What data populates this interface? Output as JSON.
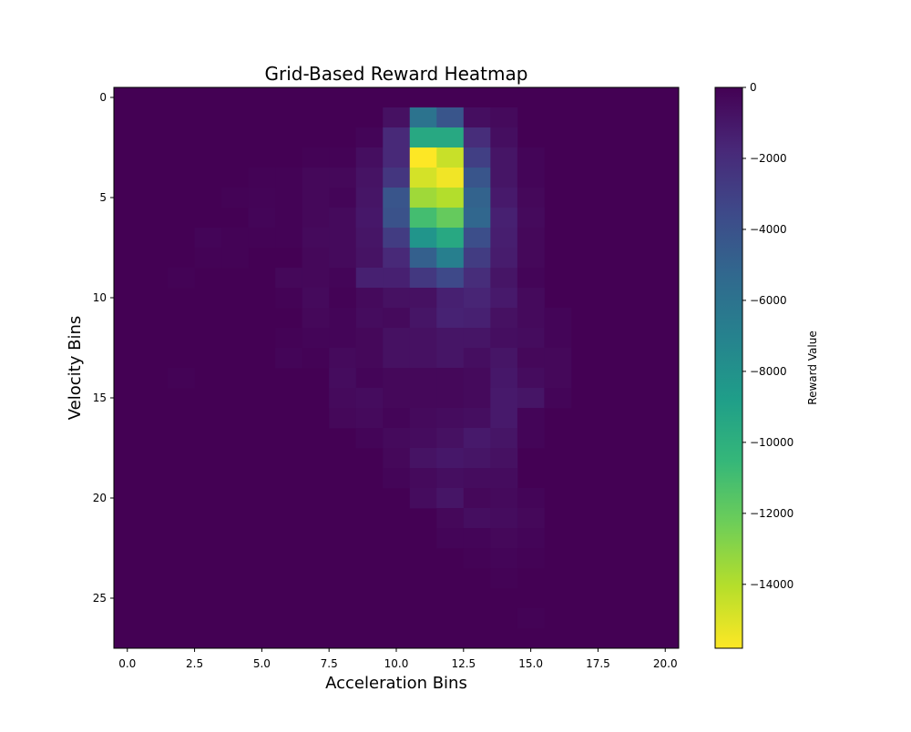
{
  "chart_data": {
    "type": "heatmap",
    "title": "Grid-Based Reward Heatmap",
    "xlabel": "Acceleration Bins",
    "ylabel": "Velocity Bins",
    "colorbar_label": "Reward Value",
    "colormap": "viridis_r",
    "color_range": [
      -15800,
      0
    ],
    "n_rows": 28,
    "n_cols": 21,
    "xlim": [
      -0.5,
      20.5
    ],
    "ylim": [
      27.5,
      -0.5
    ],
    "x_ticks": [
      0.0,
      2.5,
      5.0,
      7.5,
      10.0,
      12.5,
      15.0,
      17.5,
      20.0
    ],
    "x_tick_labels": [
      "0.0",
      "2.5",
      "5.0",
      "7.5",
      "10.0",
      "12.5",
      "15.0",
      "17.5",
      "20.0"
    ],
    "y_ticks": [
      0,
      5,
      10,
      15,
      20,
      25
    ],
    "y_tick_labels": [
      "0",
      "5",
      "10",
      "15",
      "20",
      "25"
    ],
    "colorbar_ticks": [
      0,
      -2000,
      -4000,
      -6000,
      -8000,
      -10000,
      -12000,
      -14000
    ],
    "colorbar_tick_labels": [
      "0",
      "−2000",
      "−4000",
      "−6000",
      "−8000",
      "−10000",
      "−12000",
      "−14000"
    ],
    "cells": [
      [
        1,
        10,
        -700
      ],
      [
        1,
        11,
        -6000
      ],
      [
        1,
        12,
        -4200
      ],
      [
        1,
        13,
        -600
      ],
      [
        1,
        14,
        -400
      ],
      [
        2,
        9,
        -200
      ],
      [
        2,
        10,
        -1800
      ],
      [
        2,
        11,
        -9500
      ],
      [
        2,
        12,
        -9500
      ],
      [
        2,
        13,
        -2000
      ],
      [
        2,
        14,
        -600
      ],
      [
        3,
        7,
        -100
      ],
      [
        3,
        8,
        -100
      ],
      [
        3,
        9,
        -600
      ],
      [
        3,
        10,
        -1800
      ],
      [
        3,
        11,
        -15800
      ],
      [
        3,
        12,
        -14500
      ],
      [
        3,
        13,
        -3000
      ],
      [
        3,
        14,
        -900
      ],
      [
        3,
        15,
        -200
      ],
      [
        4,
        5,
        -100
      ],
      [
        4,
        6,
        -100
      ],
      [
        4,
        7,
        -300
      ],
      [
        4,
        8,
        -300
      ],
      [
        4,
        9,
        -800
      ],
      [
        4,
        10,
        -2500
      ],
      [
        4,
        11,
        -14800
      ],
      [
        4,
        12,
        -15500
      ],
      [
        4,
        13,
        -4200
      ],
      [
        4,
        14,
        -900
      ],
      [
        4,
        15,
        -200
      ],
      [
        5,
        4,
        -100
      ],
      [
        5,
        5,
        -150
      ],
      [
        5,
        6,
        -100
      ],
      [
        5,
        7,
        -300
      ],
      [
        5,
        8,
        -200
      ],
      [
        5,
        9,
        -900
      ],
      [
        5,
        10,
        -4200
      ],
      [
        5,
        11,
        -13500
      ],
      [
        5,
        12,
        -14000
      ],
      [
        5,
        13,
        -5000
      ],
      [
        5,
        14,
        -1100
      ],
      [
        5,
        15,
        -300
      ],
      [
        6,
        5,
        -200
      ],
      [
        6,
        6,
        -100
      ],
      [
        6,
        7,
        -300
      ],
      [
        6,
        8,
        -400
      ],
      [
        6,
        9,
        -1000
      ],
      [
        6,
        10,
        -4000
      ],
      [
        6,
        11,
        -11000
      ],
      [
        6,
        12,
        -12000
      ],
      [
        6,
        13,
        -5200
      ],
      [
        6,
        14,
        -1400
      ],
      [
        6,
        15,
        -400
      ],
      [
        7,
        3,
        -200
      ],
      [
        7,
        4,
        -100
      ],
      [
        7,
        5,
        -100
      ],
      [
        7,
        6,
        -100
      ],
      [
        7,
        7,
        -400
      ],
      [
        7,
        8,
        -400
      ],
      [
        7,
        9,
        -900
      ],
      [
        7,
        10,
        -2800
      ],
      [
        7,
        11,
        -8200
      ],
      [
        7,
        12,
        -9500
      ],
      [
        7,
        13,
        -3800
      ],
      [
        7,
        14,
        -1300
      ],
      [
        7,
        15,
        -300
      ],
      [
        8,
        3,
        -100
      ],
      [
        8,
        4,
        -100
      ],
      [
        8,
        7,
        -300
      ],
      [
        8,
        8,
        -400
      ],
      [
        8,
        9,
        -800
      ],
      [
        8,
        10,
        -1800
      ],
      [
        8,
        11,
        -4800
      ],
      [
        8,
        12,
        -6800
      ],
      [
        8,
        13,
        -2800
      ],
      [
        8,
        14,
        -1200
      ],
      [
        8,
        15,
        -300
      ],
      [
        9,
        2,
        -100
      ],
      [
        9,
        6,
        -300
      ],
      [
        9,
        7,
        -300
      ],
      [
        9,
        8,
        -200
      ],
      [
        9,
        9,
        -1400
      ],
      [
        9,
        10,
        -1400
      ],
      [
        9,
        11,
        -2600
      ],
      [
        9,
        12,
        -3500
      ],
      [
        9,
        13,
        -2000
      ],
      [
        9,
        14,
        -900
      ],
      [
        9,
        15,
        -200
      ],
      [
        10,
        6,
        -100
      ],
      [
        10,
        7,
        -400
      ],
      [
        10,
        8,
        -100
      ],
      [
        10,
        9,
        -400
      ],
      [
        10,
        10,
        -700
      ],
      [
        10,
        11,
        -700
      ],
      [
        10,
        12,
        -1400
      ],
      [
        10,
        13,
        -1600
      ],
      [
        10,
        14,
        -1100
      ],
      [
        10,
        15,
        -400
      ],
      [
        11,
        7,
        -300
      ],
      [
        11,
        8,
        -200
      ],
      [
        11,
        9,
        -500
      ],
      [
        11,
        10,
        -400
      ],
      [
        11,
        11,
        -900
      ],
      [
        11,
        12,
        -1500
      ],
      [
        11,
        13,
        -1400
      ],
      [
        11,
        14,
        -700
      ],
      [
        11,
        15,
        -400
      ],
      [
        11,
        16,
        -200
      ],
      [
        12,
        6,
        -100
      ],
      [
        12,
        7,
        -200
      ],
      [
        12,
        8,
        -200
      ],
      [
        12,
        9,
        -300
      ],
      [
        12,
        10,
        -700
      ],
      [
        12,
        11,
        -700
      ],
      [
        12,
        12,
        -900
      ],
      [
        12,
        13,
        -900
      ],
      [
        12,
        14,
        -600
      ],
      [
        12,
        15,
        -500
      ],
      [
        12,
        16,
        -200
      ],
      [
        13,
        6,
        -200
      ],
      [
        13,
        7,
        -100
      ],
      [
        13,
        8,
        -400
      ],
      [
        13,
        9,
        -300
      ],
      [
        13,
        10,
        -700
      ],
      [
        13,
        11,
        -700
      ],
      [
        13,
        12,
        -900
      ],
      [
        13,
        13,
        -600
      ],
      [
        13,
        14,
        -900
      ],
      [
        13,
        15,
        -300
      ],
      [
        13,
        16,
        -300
      ],
      [
        14,
        2,
        -100
      ],
      [
        14,
        8,
        -500
      ],
      [
        14,
        9,
        -200
      ],
      [
        14,
        10,
        -300
      ],
      [
        14,
        11,
        -300
      ],
      [
        14,
        12,
        -300
      ],
      [
        14,
        13,
        -400
      ],
      [
        14,
        14,
        -1000
      ],
      [
        14,
        15,
        -500
      ],
      [
        14,
        16,
        -300
      ],
      [
        15,
        8,
        -400
      ],
      [
        15,
        9,
        -500
      ],
      [
        15,
        10,
        -300
      ],
      [
        15,
        11,
        -300
      ],
      [
        15,
        12,
        -300
      ],
      [
        15,
        13,
        -400
      ],
      [
        15,
        14,
        -1100
      ],
      [
        15,
        15,
        -900
      ],
      [
        15,
        16,
        -200
      ],
      [
        16,
        8,
        -300
      ],
      [
        16,
        9,
        -400
      ],
      [
        16,
        10,
        -200
      ],
      [
        16,
        11,
        -400
      ],
      [
        16,
        12,
        -500
      ],
      [
        16,
        13,
        -600
      ],
      [
        16,
        14,
        -1100
      ],
      [
        16,
        15,
        -200
      ],
      [
        17,
        9,
        -200
      ],
      [
        17,
        10,
        -400
      ],
      [
        17,
        11,
        -500
      ],
      [
        17,
        12,
        -700
      ],
      [
        17,
        13,
        -1100
      ],
      [
        17,
        14,
        -900
      ],
      [
        17,
        15,
        -200
      ],
      [
        18,
        10,
        -300
      ],
      [
        18,
        11,
        -800
      ],
      [
        18,
        12,
        -1000
      ],
      [
        18,
        13,
        -900
      ],
      [
        18,
        14,
        -700
      ],
      [
        19,
        10,
        -200
      ],
      [
        19,
        11,
        -400
      ],
      [
        19,
        12,
        -600
      ],
      [
        19,
        13,
        -500
      ],
      [
        19,
        14,
        -500
      ],
      [
        20,
        11,
        -500
      ],
      [
        20,
        12,
        -900
      ],
      [
        20,
        13,
        -300
      ],
      [
        20,
        14,
        -400
      ],
      [
        20,
        15,
        -200
      ],
      [
        21,
        12,
        -300
      ],
      [
        21,
        13,
        -600
      ],
      [
        21,
        14,
        -500
      ],
      [
        21,
        15,
        -300
      ],
      [
        22,
        12,
        -200
      ],
      [
        22,
        13,
        -200
      ],
      [
        22,
        14,
        -300
      ],
      [
        22,
        15,
        -200
      ],
      [
        23,
        13,
        -100
      ],
      [
        23,
        14,
        -200
      ],
      [
        23,
        15,
        -100
      ],
      [
        24,
        14,
        -100
      ],
      [
        26,
        15,
        -100
      ]
    ]
  }
}
